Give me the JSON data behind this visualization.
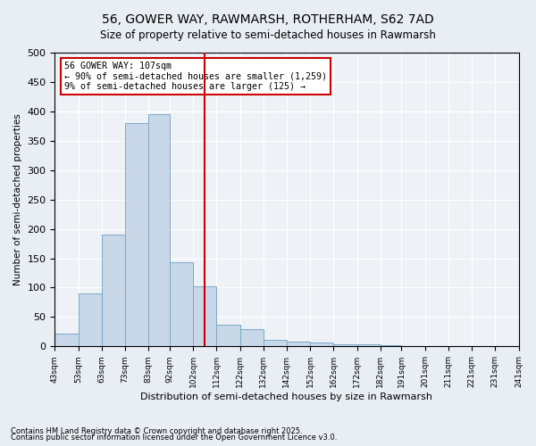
{
  "title1": "56, GOWER WAY, RAWMARSH, ROTHERHAM, S62 7AD",
  "title2": "Size of property relative to semi-detached houses in Rawmarsh",
  "xlabel": "Distribution of semi-detached houses by size in Rawmarsh",
  "ylabel": "Number of semi-detached properties",
  "bar_color": "#c8d8e8",
  "bar_edge_color": "#7aaac8",
  "vline_x": 107,
  "vline_color": "#cc0000",
  "annotation_title": "56 GOWER WAY: 107sqm",
  "annotation_line1": "← 90% of semi-detached houses are smaller (1,259)",
  "annotation_line2": "9% of semi-detached houses are larger (125) →",
  "bin_edges": [
    43,
    53,
    63,
    73,
    83,
    92,
    102,
    112,
    122,
    132,
    142,
    152,
    162,
    172,
    182,
    191,
    201,
    211,
    221,
    231,
    241
  ],
  "bar_heights": [
    22,
    90,
    190,
    380,
    395,
    143,
    103,
    37,
    30,
    11,
    8,
    6,
    4,
    4,
    2,
    0,
    1,
    0,
    0,
    0
  ],
  "ylim": [
    0,
    500
  ],
  "yticks": [
    0,
    50,
    100,
    150,
    200,
    250,
    300,
    350,
    400,
    450,
    500
  ],
  "tick_labels": [
    "43sqm",
    "53sqm",
    "63sqm",
    "73sqm",
    "83sqm",
    "92sqm",
    "102sqm",
    "112sqm",
    "122sqm",
    "132sqm",
    "142sqm",
    "152sqm",
    "162sqm",
    "172sqm",
    "182sqm",
    "191sqm",
    "201sqm",
    "211sqm",
    "221sqm",
    "231sqm",
    "241sqm"
  ],
  "footnote1": "Contains HM Land Registry data © Crown copyright and database right 2025.",
  "footnote2": "Contains public sector information licensed under the Open Government Licence v3.0.",
  "bg_color": "#e8eef4",
  "plot_bg_color": "#eef2f7"
}
